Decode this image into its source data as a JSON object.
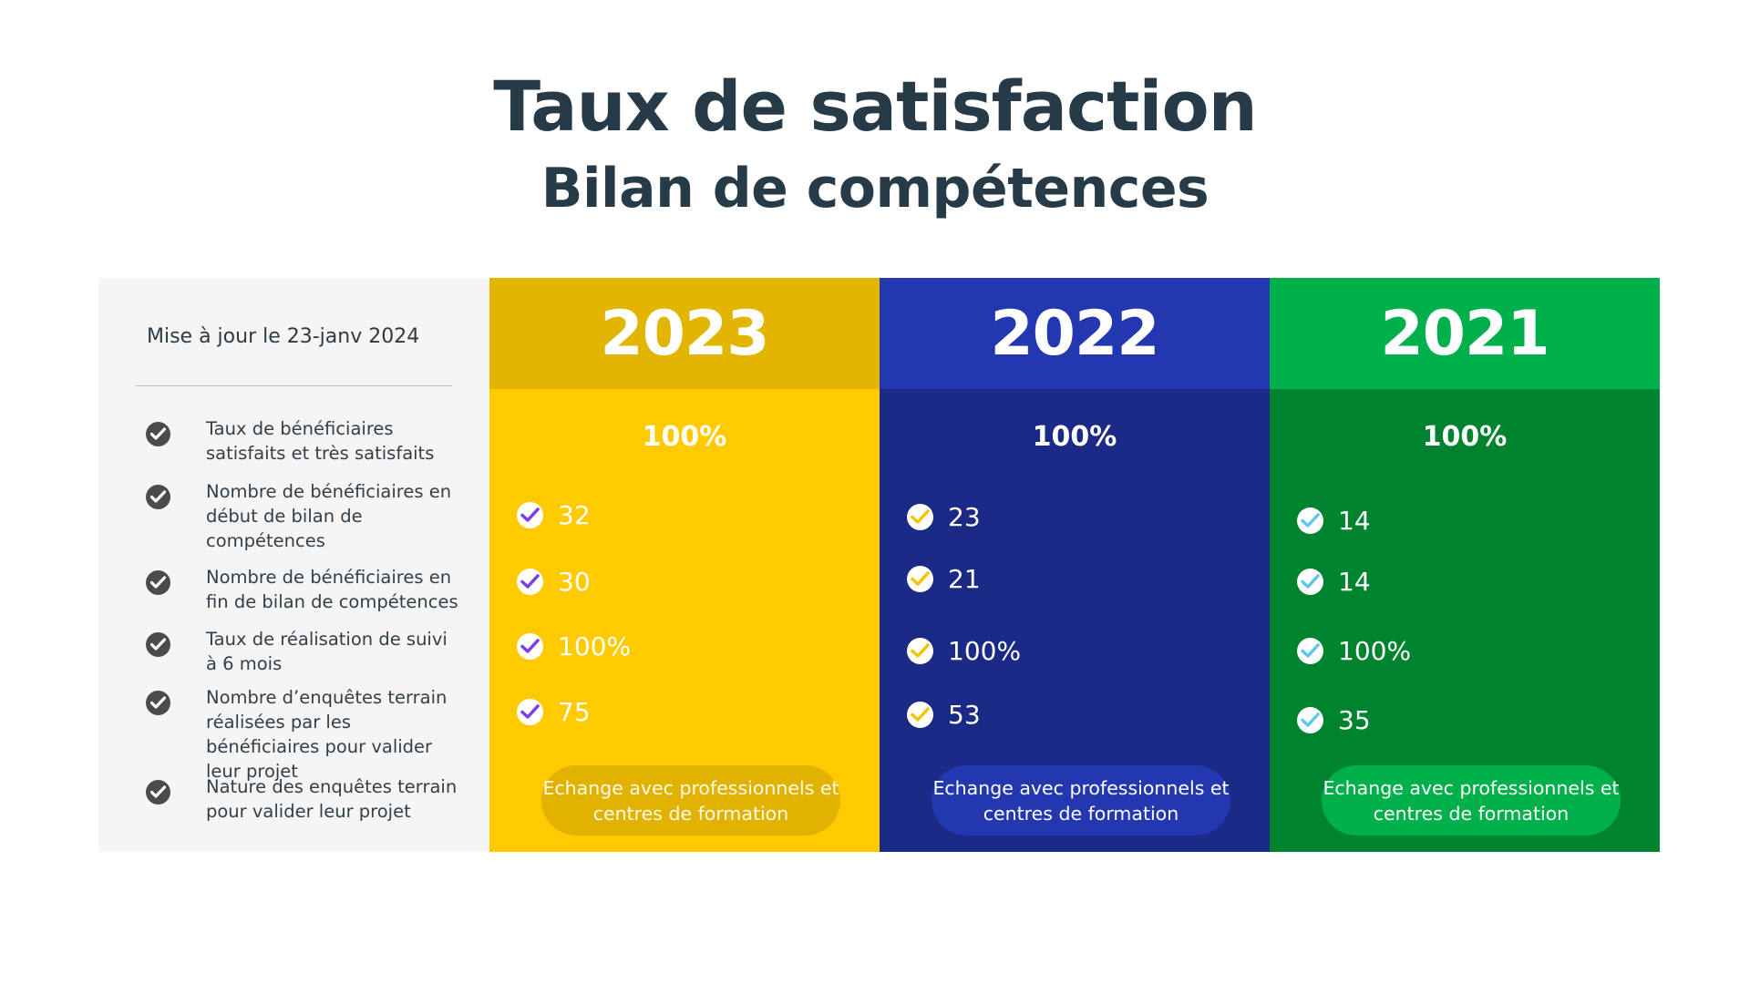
{
  "title": "Taux de satisfaction",
  "subtitle": "Bilan de compétences",
  "update_label": "Mise à jour le 23-janv 2024",
  "criteria": [
    "Taux de bénéficiaires satisfaits et très satisfaits",
    "Nombre de bénéficiaires en début de bilan de compétences",
    "Nombre de bénéficiaires en fin de bilan de compétences",
    "Taux de réalisation de suivi à 6 mois",
    "Nombre d’enquêtes terrain réalisées par les bénéficiaires pour valider leur projet",
    "Nature des enquêtes terrain pour valider leur projet"
  ],
  "years": [
    {
      "year": "2023",
      "satisfaction": "100%",
      "values": [
        "32",
        "30",
        "100%",
        "75"
      ],
      "nature": "Echange avec professionnels et centres de formation",
      "colors": {
        "header": "#e1b500",
        "body": "#ffcb00",
        "check": "#7a3ee6"
      }
    },
    {
      "year": "2022",
      "satisfaction": "100%",
      "values": [
        "23",
        "21",
        "100%",
        "53"
      ],
      "nature": "Echange avec professionnels et centres de formation",
      "colors": {
        "header": "#2337b0",
        "body": "#1b2a86",
        "check": "#f5c400"
      }
    },
    {
      "year": "2021",
      "satisfaction": "100%",
      "values": [
        "14",
        "14",
        "100%",
        "35"
      ],
      "nature": "Echange avec professionnels et centres de formation",
      "colors": {
        "header": "#00b04a",
        "body": "#00832f",
        "check": "#5cc8f0"
      }
    }
  ],
  "icons": {
    "criteria_check": "check-circle-icon",
    "value_check": "check-badge-icon"
  }
}
